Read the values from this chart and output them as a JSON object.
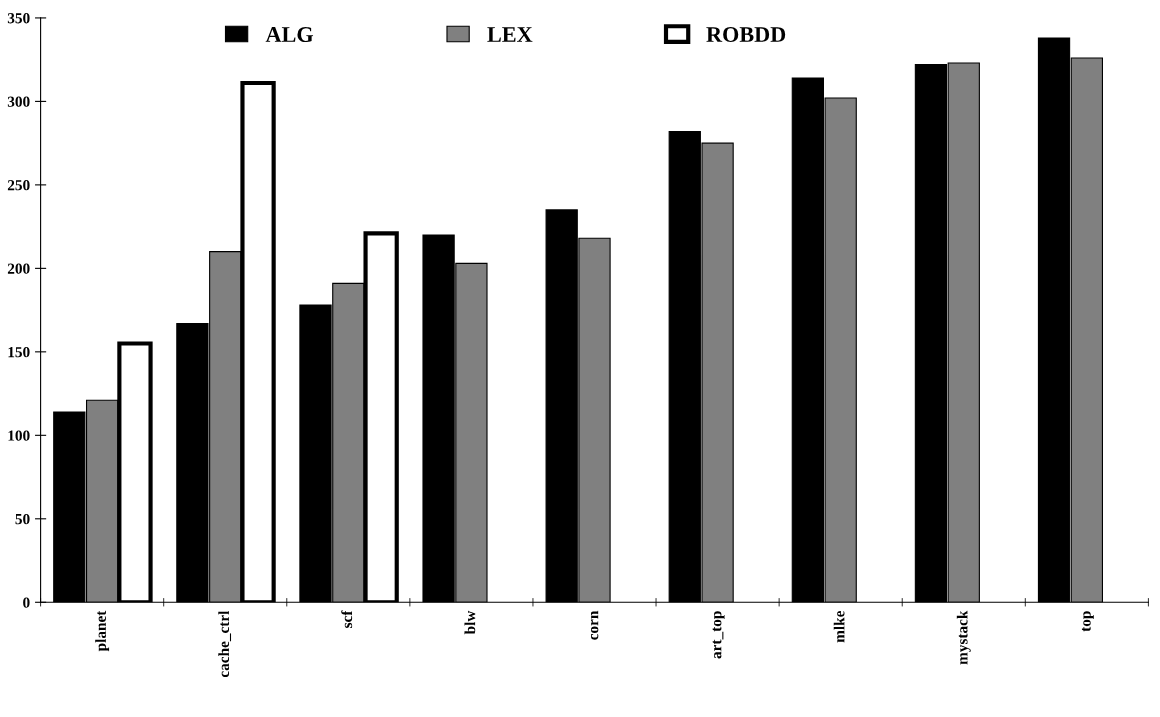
{
  "chart_data": {
    "type": "bar",
    "categories": [
      "planet",
      "cache_ctrl",
      "scf",
      "blw",
      "corn",
      "art_top",
      "mlke",
      "mystack",
      "top"
    ],
    "series": [
      {
        "name": "ALG",
        "color": "#000000",
        "values": [
          114,
          167,
          178,
          220,
          235,
          282,
          314,
          322,
          338
        ]
      },
      {
        "name": "LEX",
        "color": "#808080",
        "values": [
          121,
          210,
          191,
          203,
          218,
          275,
          302,
          323,
          326
        ]
      },
      {
        "name": "ROBDD",
        "color": "#ffffff",
        "values": [
          155,
          311,
          221,
          null,
          null,
          null,
          null,
          null,
          null
        ]
      }
    ],
    "ylim": [
      0,
      350
    ],
    "yticks": [
      0,
      50,
      100,
      150,
      200,
      250,
      300,
      350
    ],
    "grid": false,
    "legend": "top"
  }
}
